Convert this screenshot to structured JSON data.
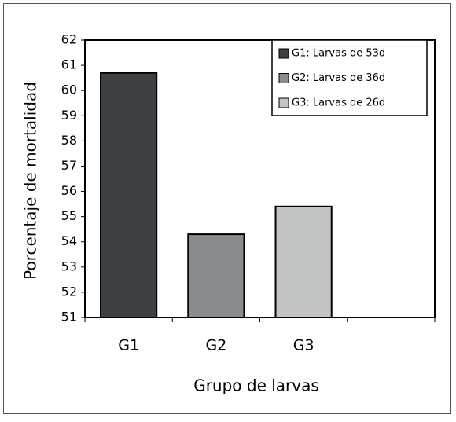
{
  "chart_data": {
    "type": "bar",
    "categories": [
      "G1",
      "G2",
      "G3",
      null
    ],
    "series": [
      {
        "name": "G1: Larvas de 53d",
        "color": "#3d4143",
        "values": [
          60.7,
          null,
          null,
          null
        ]
      },
      {
        "name": "G2: Larvas de 36d",
        "color": "#8a8d90",
        "values": [
          null,
          54.3,
          null,
          null
        ]
      },
      {
        "name": "G3: Larvas de 26d",
        "color": "#c3c5c4",
        "values": [
          null,
          null,
          55.4,
          null
        ]
      }
    ],
    "ylim": [
      51,
      62
    ],
    "yticks": [
      51,
      52,
      53,
      54,
      55,
      56,
      57,
      58,
      59,
      60,
      61,
      62
    ],
    "ylabel": "Porcentaje de mortalidad",
    "xlabel": "Grupo de larvas",
    "legend": "upper right",
    "grid": false
  }
}
